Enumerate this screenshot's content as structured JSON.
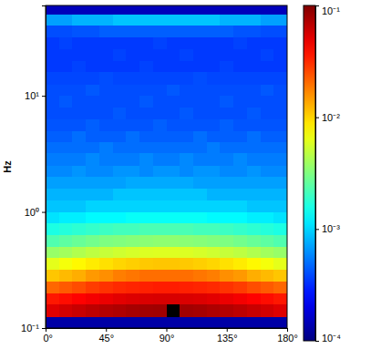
{
  "chart_data": {
    "type": "heatmap",
    "y_label": "Hz",
    "log": "y",
    "x_bins": [
      0,
      10,
      20,
      30,
      40,
      50,
      60,
      70,
      80,
      90,
      100,
      110,
      120,
      130,
      140,
      150,
      160,
      170,
      180
    ],
    "y_bins": [
      0.1,
      0.125,
      0.16,
      0.2,
      0.25,
      0.32,
      0.4,
      0.5,
      0.63,
      0.8,
      1,
      1.25,
      1.6,
      2,
      2.5,
      3.2,
      4,
      5,
      6.3,
      8,
      10,
      12.5,
      16,
      20,
      25,
      32,
      40,
      50,
      60
    ],
    "xlim": [
      0,
      180
    ],
    "xticks": [
      {
        "value": 0,
        "label": "0°"
      },
      {
        "value": 45,
        "label": "45°"
      },
      {
        "value": 90,
        "label": "90°"
      },
      {
        "value": 135,
        "label": "135°"
      },
      {
        "value": 180,
        "label": "180°"
      }
    ],
    "ylim": [
      0.1,
      60
    ],
    "yticks": [
      {
        "value": 0.1,
        "label": "10⁻¹"
      },
      {
        "value": 1,
        "label": "10⁰"
      },
      {
        "value": 10,
        "label": "10¹"
      }
    ],
    "values": [
      [
        0.00013,
        0.00013,
        0.00013,
        0.00013,
        0.00013,
        0.00013,
        0.00013,
        0.00013,
        0.00013,
        0.00013,
        0.00013,
        0.00013,
        0.00013,
        0.00013,
        0.00013,
        0.00013,
        0.00013,
        0.00013
      ],
      [
        0.052,
        0.057,
        0.061,
        0.066,
        0.07,
        0.073,
        0.077,
        0.079,
        0.08,
        0.2,
        0.079,
        0.077,
        0.073,
        0.07,
        0.066,
        0.061,
        0.057,
        0.052
      ],
      [
        0.036,
        0.039,
        0.042,
        0.045,
        0.048,
        0.051,
        0.053,
        0.054,
        0.055,
        0.055,
        0.054,
        0.053,
        0.051,
        0.048,
        0.045,
        0.042,
        0.039,
        0.036
      ],
      [
        0.021,
        0.023,
        0.025,
        0.028,
        0.03,
        0.032,
        0.033,
        0.034,
        0.035,
        0.035,
        0.034,
        0.033,
        0.032,
        0.03,
        0.028,
        0.025,
        0.023,
        0.021
      ],
      [
        0.011,
        0.012,
        0.013,
        0.015,
        0.016,
        0.018,
        0.019,
        0.02,
        0.02,
        0.02,
        0.02,
        0.019,
        0.018,
        0.016,
        0.015,
        0.013,
        0.012,
        0.011
      ],
      [
        0.0063,
        0.007,
        0.0078,
        0.0085,
        0.0092,
        0.0099,
        0.0104,
        0.0108,
        0.011,
        0.011,
        0.0108,
        0.0104,
        0.0099,
        0.0092,
        0.0085,
        0.0078,
        0.007,
        0.0063
      ],
      [
        0.0037,
        0.004,
        0.0044,
        0.0048,
        0.0051,
        0.0054,
        0.0057,
        0.0059,
        0.006,
        0.006,
        0.0059,
        0.0057,
        0.0054,
        0.0051,
        0.0048,
        0.0044,
        0.004,
        0.0037
      ],
      [
        0.0023,
        0.0025,
        0.0027,
        0.0029,
        0.0031,
        0.0032,
        0.0033,
        0.0034,
        0.0035,
        0.0035,
        0.0034,
        0.0033,
        0.0032,
        0.0031,
        0.0029,
        0.0027,
        0.0025,
        0.0023
      ],
      [
        0.0016,
        0.0017,
        0.0018,
        0.0019,
        0.002,
        0.0021,
        0.0021,
        0.0022,
        0.0022,
        0.0022,
        0.0022,
        0.0021,
        0.0021,
        0.002,
        0.0019,
        0.0018,
        0.0017,
        0.0016
      ],
      [
        0.0011,
        0.0012,
        0.0012,
        0.0013,
        0.0013,
        0.0013,
        0.0014,
        0.0014,
        0.0014,
        0.0014,
        0.0014,
        0.0014,
        0.0013,
        0.0013,
        0.0013,
        0.0012,
        0.0012,
        0.0011
      ],
      [
        0.0009,
        0.0009,
        0.0009,
        0.001,
        0.001,
        0.001,
        0.001,
        0.001,
        0.001,
        0.001,
        0.001,
        0.001,
        0.001,
        0.001,
        0.001,
        0.0009,
        0.0009,
        0.0009
      ],
      [
        0.0008,
        0.0008,
        0.0008,
        0.0008,
        0.0008,
        0.0009,
        0.0009,
        0.0009,
        0.0009,
        0.0009,
        0.0009,
        0.0009,
        0.0008,
        0.0008,
        0.0008,
        0.0008,
        0.0008,
        0.0008
      ],
      [
        0.0007,
        0.0007,
        0.0007,
        0.0007,
        0.0007,
        0.0007,
        0.00075,
        0.00075,
        0.00075,
        0.00075,
        0.00075,
        0.0007,
        0.0007,
        0.0007,
        0.0007,
        0.0007,
        0.0007,
        0.0007
      ],
      [
        0.0006,
        0.0006,
        0.00065,
        0.0006,
        0.0006,
        0.00065,
        0.00065,
        0.0006,
        0.00065,
        0.00065,
        0.0006,
        0.00065,
        0.00065,
        0.0006,
        0.0006,
        0.00065,
        0.0006,
        0.0006
      ],
      [
        0.00055,
        0.00055,
        0.00055,
        0.0006,
        0.00055,
        0.00055,
        0.00055,
        0.0006,
        0.00055,
        0.00055,
        0.0006,
        0.00055,
        0.00055,
        0.00055,
        0.0006,
        0.00055,
        0.00055,
        0.00055
      ],
      [
        0.0005,
        0.0005,
        0.0005,
        0.0005,
        0.00055,
        0.0005,
        0.0005,
        0.0005,
        0.0005,
        0.0005,
        0.0005,
        0.0005,
        0.00055,
        0.0005,
        0.0005,
        0.0005,
        0.0005,
        0.0005
      ],
      [
        0.00045,
        0.00045,
        0.0005,
        0.00045,
        0.00045,
        0.00045,
        0.0005,
        0.00045,
        0.00045,
        0.00045,
        0.00045,
        0.0005,
        0.00045,
        0.00045,
        0.00045,
        0.0005,
        0.00045,
        0.00045
      ],
      [
        0.00042,
        0.00042,
        0.00042,
        0.00045,
        0.00042,
        0.00042,
        0.00042,
        0.00042,
        0.00045,
        0.00042,
        0.00042,
        0.00042,
        0.00042,
        0.00045,
        0.00042,
        0.00042,
        0.00042,
        0.00042
      ],
      [
        0.0004,
        0.0004,
        0.0004,
        0.0004,
        0.0004,
        0.00043,
        0.0004,
        0.0004,
        0.0004,
        0.0004,
        0.00043,
        0.0004,
        0.0004,
        0.0004,
        0.0004,
        0.00043,
        0.0004,
        0.0004
      ],
      [
        0.0004,
        0.00043,
        0.0004,
        0.0004,
        0.0004,
        0.0004,
        0.0004,
        0.00043,
        0.0004,
        0.0004,
        0.0004,
        0.0004,
        0.0004,
        0.00043,
        0.0004,
        0.0004,
        0.0004,
        0.0004
      ],
      [
        0.0004,
        0.0004,
        0.0004,
        0.00043,
        0.0004,
        0.0004,
        0.0004,
        0.0004,
        0.0004,
        0.00043,
        0.0004,
        0.0004,
        0.0004,
        0.0004,
        0.0004,
        0.0004,
        0.00043,
        0.0004
      ],
      [
        0.00038,
        0.00038,
        0.00038,
        0.00038,
        0.0004,
        0.00038,
        0.00038,
        0.00038,
        0.00038,
        0.00038,
        0.00038,
        0.0004,
        0.00038,
        0.00038,
        0.00038,
        0.00038,
        0.00038,
        0.00038
      ],
      [
        0.00035,
        0.00035,
        0.00037,
        0.00035,
        0.00035,
        0.00035,
        0.00035,
        0.00037,
        0.00035,
        0.00035,
        0.00035,
        0.00035,
        0.00035,
        0.00037,
        0.00035,
        0.00035,
        0.00035,
        0.00035
      ],
      [
        0.00035,
        0.00035,
        0.00035,
        0.00035,
        0.00035,
        0.00037,
        0.00035,
        0.00035,
        0.00035,
        0.00035,
        0.00037,
        0.00035,
        0.00035,
        0.00035,
        0.00035,
        0.00035,
        0.00037,
        0.00035
      ],
      [
        0.00035,
        0.00037,
        0.00035,
        0.00035,
        0.00035,
        0.00035,
        0.00035,
        0.00035,
        0.00037,
        0.00035,
        0.00035,
        0.00035,
        0.00035,
        0.00035,
        0.00037,
        0.00035,
        0.00035,
        0.00035
      ],
      [
        0.0004,
        0.0004,
        0.00042,
        0.00042,
        0.00045,
        0.00045,
        0.00045,
        0.00045,
        0.00045,
        0.00045,
        0.00045,
        0.00045,
        0.00045,
        0.00045,
        0.00042,
        0.00042,
        0.0004,
        0.0004
      ],
      [
        0.0007,
        0.0007,
        0.0008,
        0.0008,
        0.0008,
        0.0009,
        0.0009,
        0.0009,
        0.0009,
        0.0009,
        0.0009,
        0.0009,
        0.0009,
        0.0008,
        0.0008,
        0.0008,
        0.0007,
        0.0007
      ],
      [
        0.00015,
        0.00015,
        0.00015,
        0.00015,
        0.00015,
        0.00015,
        0.00015,
        0.00015,
        0.00015,
        0.00015,
        0.00015,
        0.00015,
        0.00015,
        0.00015,
        0.00015,
        0.00015,
        0.00015,
        0.00015
      ]
    ],
    "colorbar": {
      "range": [
        0.0001,
        0.1
      ],
      "ticks": [
        {
          "value": 0.0001,
          "label": "10⁻⁴"
        },
        {
          "value": 0.001,
          "label": "10⁻³"
        },
        {
          "value": 0.01,
          "label": "10⁻²"
        },
        {
          "value": 0.1,
          "label": "10⁻¹"
        }
      ]
    }
  }
}
